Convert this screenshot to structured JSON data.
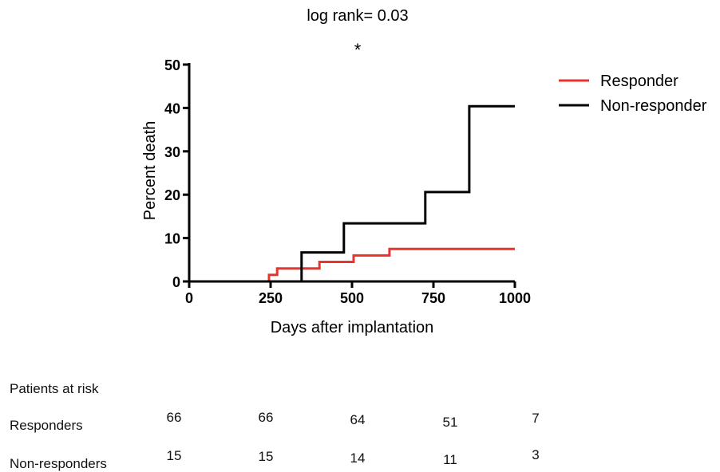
{
  "chart_data": {
    "type": "line",
    "title": "log rank= 0.03",
    "annotation": "*",
    "xlabel": "Days after implantation",
    "ylabel": "Percent death",
    "xlim": [
      0,
      1000
    ],
    "ylim": [
      0,
      50
    ],
    "xticks": [
      0,
      250,
      500,
      750,
      1000
    ],
    "yticks": [
      0,
      10,
      20,
      30,
      40,
      50
    ],
    "grid": false,
    "legend_position": "top-right",
    "series": [
      {
        "name": "Responder",
        "color": "#e8342f",
        "steps": [
          [
            0,
            0
          ],
          [
            245,
            0
          ],
          [
            245,
            1.5
          ],
          [
            270,
            1.5
          ],
          [
            270,
            3
          ],
          [
            400,
            3
          ],
          [
            400,
            4.5
          ],
          [
            505,
            4.5
          ],
          [
            505,
            6
          ],
          [
            615,
            6
          ],
          [
            615,
            7.5
          ],
          [
            1000,
            7.5
          ]
        ]
      },
      {
        "name": "Non-responder",
        "color": "#000000",
        "steps": [
          [
            0,
            0
          ],
          [
            345,
            0
          ],
          [
            345,
            6.7
          ],
          [
            475,
            6.7
          ],
          [
            475,
            13.4
          ],
          [
            725,
            13.4
          ],
          [
            725,
            20.6
          ],
          [
            860,
            20.6
          ],
          [
            860,
            40.4
          ],
          [
            1000,
            40.4
          ]
        ]
      }
    ]
  },
  "risk_table": {
    "title": "Patients at risk",
    "rows": [
      {
        "label": "Responders",
        "values": [
          "66",
          "66",
          "64",
          "51",
          "7"
        ]
      },
      {
        "label": "Non-responders",
        "values": [
          "15",
          "15",
          "14",
          "11",
          "3"
        ]
      }
    ]
  }
}
